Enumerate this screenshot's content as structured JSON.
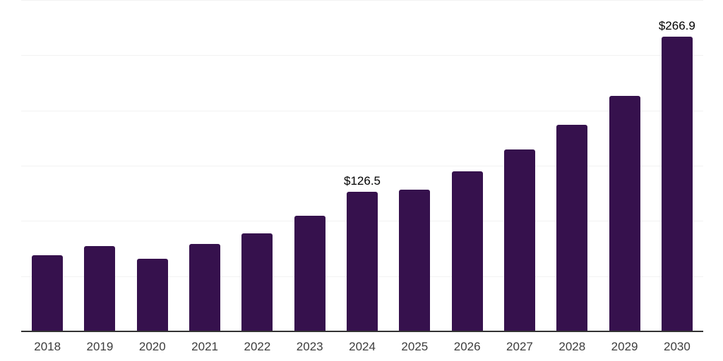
{
  "chart_data": {
    "type": "bar",
    "title": "",
    "xlabel": "",
    "ylabel": "",
    "categories": [
      "2018",
      "2019",
      "2020",
      "2021",
      "2022",
      "2023",
      "2024",
      "2025",
      "2026",
      "2027",
      "2028",
      "2029",
      "2030"
    ],
    "values": [
      69,
      77,
      66,
      79,
      88.5,
      104.5,
      126.5,
      128.5,
      145,
      165,
      187,
      213.5,
      266.9
    ],
    "annotations": [
      {
        "index": 6,
        "text": "$126.5"
      },
      {
        "index": 12,
        "text": "$266.9"
      }
    ],
    "ylim": [
      0,
      300
    ],
    "grid_step": 50,
    "grid": true,
    "legend": false,
    "y_tick_labels_visible": false,
    "colors": {
      "bar": "#36114D",
      "axis": "#333333",
      "gridline": "#f2f2f2",
      "tick_label": "#3d3d3d",
      "value_label": "#000000",
      "background": "#ffffff"
    }
  }
}
